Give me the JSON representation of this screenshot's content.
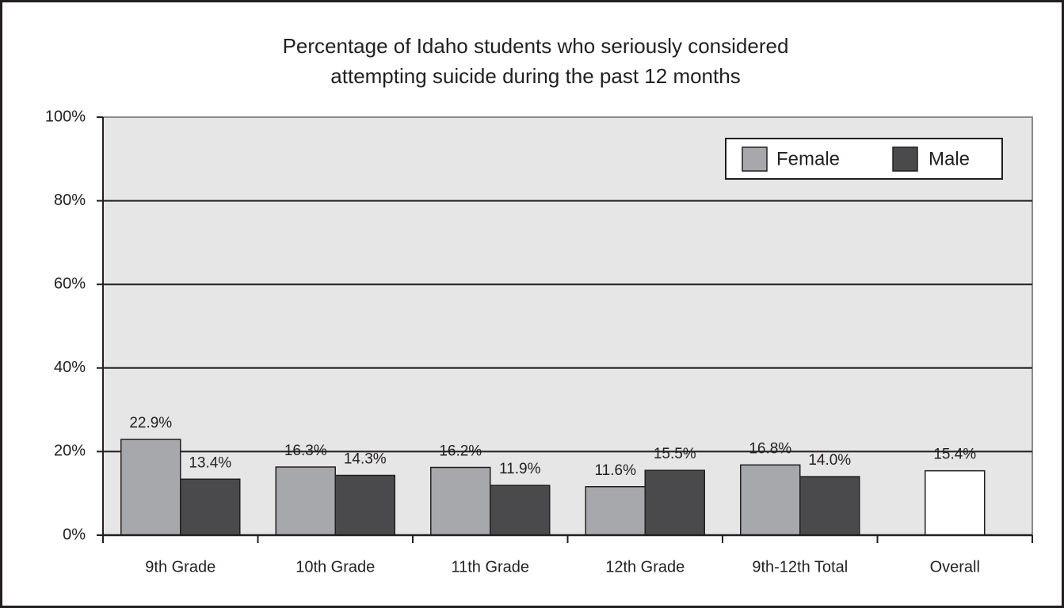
{
  "chart_data": {
    "type": "bar",
    "title": [
      "Percentage of Idaho students who seriously considered",
      "attempting suicide during the past 12 months"
    ],
    "categories": [
      "9th Grade",
      "10th Grade",
      "11th Grade",
      "12th Grade",
      "9th-12th Total",
      "Overall"
    ],
    "series": [
      {
        "name": "Female",
        "color": "#a7a8ab",
        "values": [
          22.9,
          16.3,
          16.2,
          11.6,
          16.8,
          null
        ],
        "value_labels": [
          "22.9%",
          "16.3%",
          "16.2%",
          "11.6%",
          "16.8%",
          null
        ]
      },
      {
        "name": "Male",
        "color": "#4a4a4d",
        "values": [
          13.4,
          14.3,
          11.9,
          15.5,
          14.0,
          null
        ],
        "value_labels": [
          "13.4%",
          "14.3%",
          "11.9%",
          "15.5%",
          "14.0%",
          null
        ]
      }
    ],
    "overall": {
      "color": "#ffffff",
      "values": [
        null,
        null,
        null,
        null,
        null,
        15.4
      ],
      "value_labels": [
        null,
        null,
        null,
        null,
        null,
        "15.4%"
      ]
    },
    "ylim": [
      0,
      100
    ],
    "yticks": [
      {
        "value": 0,
        "label": "0%"
      },
      {
        "value": 20,
        "label": "20%"
      },
      {
        "value": 40,
        "label": "40%"
      },
      {
        "value": 60,
        "label": "60%"
      },
      {
        "value": 80,
        "label": "80%"
      },
      {
        "value": 100,
        "label": "100%"
      }
    ],
    "grid": true,
    "legend": "top-right",
    "plot_background": "#e6e6e7"
  }
}
